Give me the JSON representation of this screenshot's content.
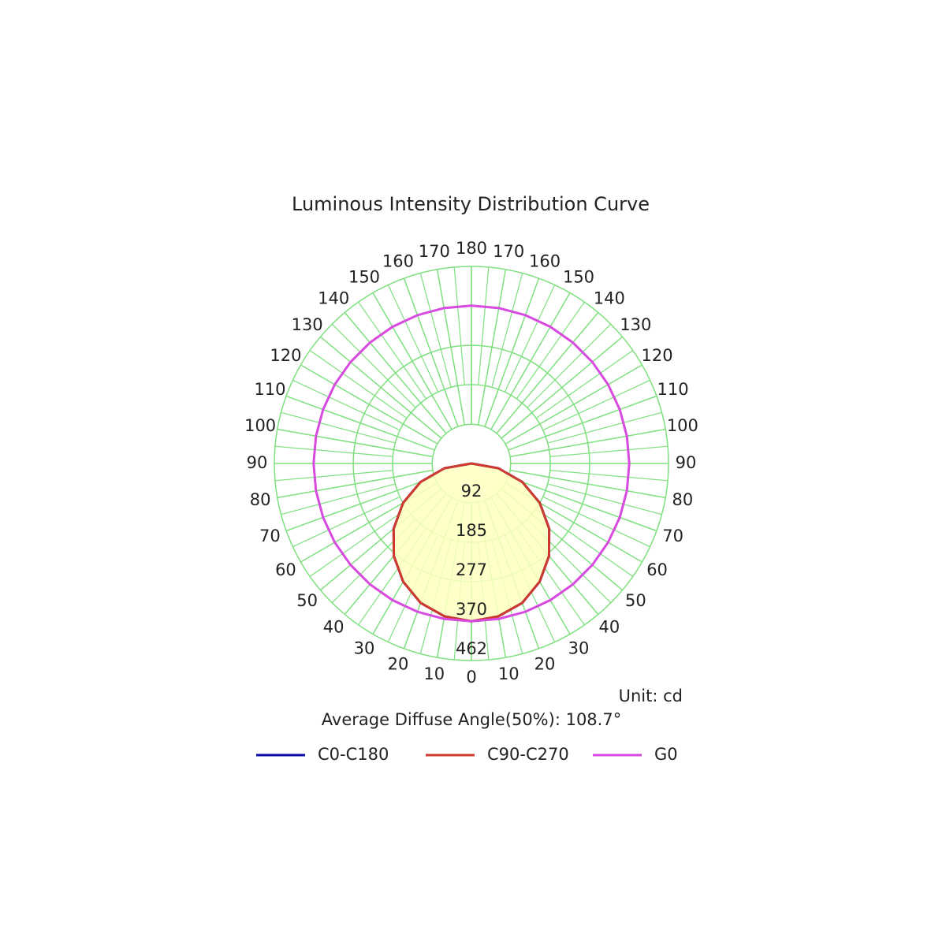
{
  "chart_data": {
    "type": "polar",
    "title": "Luminous Intensity Distribution Curve",
    "unit_note": "Unit: cd",
    "annotation": "Average Diffuse Angle(50%): 108.7°",
    "x": [
      0,
      10,
      20,
      30,
      40,
      50,
      60,
      70,
      80,
      90,
      100,
      110,
      120,
      130,
      140,
      150,
      160,
      170,
      180
    ],
    "xticks": [
      0,
      10,
      20,
      30,
      40,
      50,
      60,
      70,
      80,
      90,
      100,
      110,
      120,
      130,
      140,
      150,
      160,
      170,
      180
    ],
    "ylim": [
      0,
      462
    ],
    "yticks": [
      92,
      185,
      277,
      370,
      462
    ],
    "grid_color": "#7ee07e",
    "fill_color": "#ffffc0",
    "series": [
      {
        "name": "C0-C180",
        "color": "#0a0aa8",
        "values": [
          370,
          364,
          348,
          320,
          283,
          238,
          185,
          127,
          64,
          0,
          null,
          null,
          null,
          null,
          null,
          null,
          null,
          null,
          null
        ]
      },
      {
        "name": "C90-C270",
        "color": "#d03a2e",
        "values": [
          370,
          364,
          348,
          320,
          283,
          238,
          185,
          127,
          64,
          0,
          null,
          null,
          null,
          null,
          null,
          null,
          null,
          null,
          null
        ]
      },
      {
        "name": "G0",
        "color": "#d84ae0",
        "values": [
          370,
          370,
          370,
          370,
          370,
          370,
          370,
          370,
          370,
          370,
          370,
          370,
          370,
          370,
          370,
          370,
          370,
          370,
          370
        ]
      }
    ]
  }
}
